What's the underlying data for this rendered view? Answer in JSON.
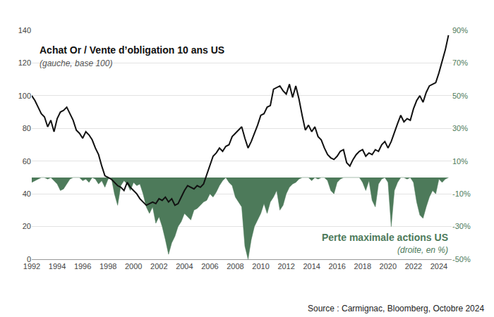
{
  "chart_data": {
    "type": "line",
    "source": "Source : Carmignac, Bloomberg, Octobre 2024",
    "x": [
      1992,
      1992.25,
      1992.5,
      1992.75,
      1993,
      1993.25,
      1993.5,
      1993.75,
      1994,
      1994.25,
      1994.5,
      1994.75,
      1995,
      1995.25,
      1995.5,
      1995.75,
      1996,
      1996.25,
      1996.5,
      1996.75,
      1997,
      1997.25,
      1997.5,
      1997.75,
      1998,
      1998.25,
      1998.5,
      1998.75,
      1999,
      1999.25,
      1999.5,
      1999.75,
      2000,
      2000.25,
      2000.5,
      2000.75,
      2001,
      2001.25,
      2001.5,
      2001.75,
      2002,
      2002.25,
      2002.5,
      2002.75,
      2003,
      2003.25,
      2003.5,
      2003.75,
      2004,
      2004.25,
      2004.5,
      2004.75,
      2005,
      2005.25,
      2005.5,
      2005.75,
      2006,
      2006.25,
      2006.5,
      2006.75,
      2007,
      2007.25,
      2007.5,
      2007.75,
      2008,
      2008.25,
      2008.5,
      2008.75,
      2009,
      2009.25,
      2009.5,
      2009.75,
      2010,
      2010.25,
      2010.5,
      2010.75,
      2011,
      2011.25,
      2011.5,
      2011.75,
      2012,
      2012.25,
      2012.5,
      2012.75,
      2013,
      2013.25,
      2013.5,
      2013.75,
      2014,
      2014.25,
      2014.5,
      2014.75,
      2015,
      2015.25,
      2015.5,
      2015.75,
      2016,
      2016.25,
      2016.5,
      2016.75,
      2017,
      2017.25,
      2017.5,
      2017.75,
      2018,
      2018.25,
      2018.5,
      2018.75,
      2019,
      2019.25,
      2019.5,
      2019.75,
      2020,
      2020.25,
      2020.5,
      2020.75,
      2021,
      2021.25,
      2021.5,
      2021.75,
      2022,
      2022.25,
      2022.5,
      2022.75,
      2023,
      2023.25,
      2023.5,
      2023.75,
      2024,
      2024.25,
      2024.5,
      2024.75
    ],
    "series": [
      {
        "name": "Perte maximale actions US",
        "subtitle": "(droite, en %)",
        "type": "area",
        "axis": "y2",
        "color": "#4d7a5a",
        "values": [
          -3,
          -2,
          -1,
          0,
          0,
          -1,
          0,
          -2,
          -4,
          -8,
          -7,
          -4,
          -1,
          0,
          0,
          0,
          -2,
          -1,
          -3,
          0,
          -1,
          -4,
          -2,
          -6,
          -1,
          0,
          -10,
          -17,
          -5,
          -2,
          -4,
          -8,
          -3,
          -5,
          -4,
          -10,
          -18,
          -22,
          -18,
          -28,
          -24,
          -30,
          -38,
          -47,
          -40,
          -36,
          -30,
          -27,
          -22,
          -24,
          -26,
          -20,
          -19,
          -17,
          -15,
          -14,
          -10,
          -12,
          -9,
          -5,
          -2,
          0,
          -3,
          -5,
          -12,
          -15,
          -18,
          -42,
          -50,
          -38,
          -30,
          -26,
          -22,
          -16,
          -22,
          -15,
          -12,
          -8,
          -20,
          -17,
          -10,
          -6,
          -4,
          -3,
          -1,
          0,
          0,
          0,
          -2,
          0,
          -1,
          0,
          0,
          -2,
          -8,
          -10,
          -3,
          -1,
          0,
          0,
          0,
          0,
          0,
          0,
          -3,
          -8,
          -2,
          -14,
          -18,
          -4,
          -1,
          0,
          -3,
          -30,
          -8,
          -3,
          0,
          0,
          -1,
          0,
          -3,
          -15,
          -23,
          -25,
          -18,
          -12,
          -8,
          -10,
          -1,
          -3,
          -1,
          0
        ]
      },
      {
        "name": "Achat Or / Vente d’obligation 10 ans US",
        "subtitle": "(gauche, base 100)",
        "type": "line",
        "color": "#111111",
        "values": [
          100,
          97,
          93,
          89,
          87,
          81,
          85,
          78,
          86,
          90,
          91,
          93,
          89,
          85,
          79,
          77,
          74,
          78,
          76,
          73,
          68,
          64,
          57,
          51,
          50,
          49,
          47,
          45,
          44,
          42,
          47,
          44,
          42,
          40,
          37,
          35,
          33,
          34,
          35,
          34,
          37,
          36,
          38,
          35,
          37,
          33,
          34,
          38,
          42,
          45,
          44,
          43,
          45,
          44,
          46,
          52,
          58,
          63,
          65,
          68,
          66,
          69,
          70,
          75,
          77,
          79,
          81,
          74,
          68,
          72,
          77,
          82,
          88,
          89,
          93,
          94,
          104,
          105,
          106,
          103,
          101,
          107,
          99,
          106,
          98,
          88,
          79,
          82,
          78,
          81,
          75,
          73,
          68,
          64,
          62,
          61,
          63,
          66,
          67,
          59,
          57,
          61,
          64,
          66,
          67,
          63,
          65,
          64,
          67,
          66,
          70,
          72,
          68,
          72,
          78,
          83,
          88,
          84,
          86,
          85,
          92,
          97,
          100,
          96,
          102,
          106,
          107,
          108,
          114,
          121,
          128,
          137
        ]
      }
    ],
    "xlim": [
      1992,
      2025
    ],
    "xticks": [
      1992,
      1994,
      1996,
      1998,
      2000,
      2002,
      2004,
      2006,
      2008,
      2010,
      2012,
      2014,
      2016,
      2018,
      2020,
      2022,
      2024
    ],
    "ylim": [
      0,
      140
    ],
    "yticks": [
      0,
      20,
      40,
      60,
      80,
      100,
      120,
      140
    ],
    "y2lim": [
      -50,
      90
    ],
    "y2ticks": [
      {
        "value": -50,
        "label": "-50%"
      },
      {
        "value": -30,
        "label": "-30%"
      },
      {
        "value": -10,
        "label": "-10%"
      },
      {
        "value": 10,
        "label": "10%"
      },
      {
        "value": 30,
        "label": "30%"
      },
      {
        "value": 50,
        "label": "50%"
      },
      {
        "value": 70,
        "label": "70%"
      },
      {
        "value": 90,
        "label": "90%"
      }
    ],
    "grid": true,
    "legend": false
  }
}
